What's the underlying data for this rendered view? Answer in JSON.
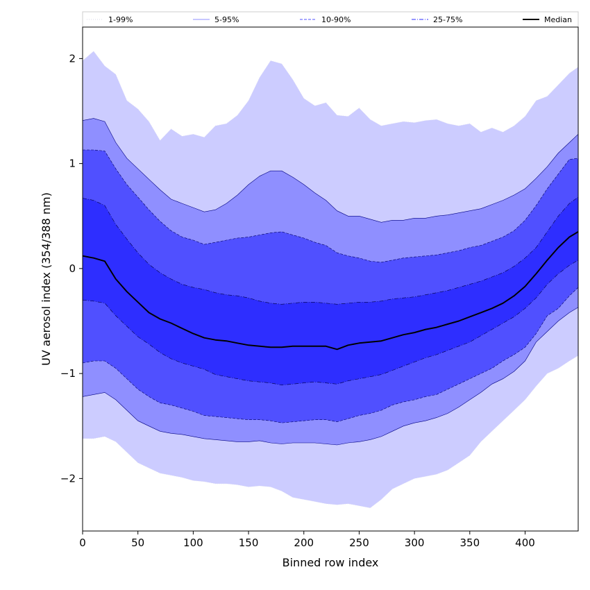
{
  "chart_data": {
    "type": "area",
    "xlabel": "Binned row index",
    "ylabel": "UV aerosol index (354/388 nm)",
    "xlim": [
      0,
      448
    ],
    "ylim": [
      -2.5,
      2.3
    ],
    "xticks": [
      0,
      50,
      100,
      150,
      200,
      250,
      300,
      350,
      400
    ],
    "xtick_labels": [
      "0",
      "50",
      "100",
      "150",
      "200",
      "250",
      "300",
      "350",
      "400"
    ],
    "yticks": [
      -2,
      -1,
      0,
      1,
      2
    ],
    "ytick_labels": [
      "−2",
      "−1",
      "0",
      "1",
      "2"
    ],
    "legend_position": "top, above plot, single row",
    "x": [
      0,
      10,
      20,
      30,
      40,
      50,
      60,
      70,
      80,
      90,
      100,
      110,
      120,
      130,
      140,
      150,
      160,
      170,
      180,
      190,
      200,
      210,
      220,
      230,
      240,
      250,
      260,
      270,
      280,
      290,
      300,
      310,
      320,
      330,
      340,
      350,
      360,
      370,
      380,
      390,
      400,
      410,
      420,
      430,
      440,
      448
    ],
    "bands": [
      {
        "name": "1-99%",
        "color": "#ccccff",
        "line_color": "#e0e0ee",
        "line_style": "dotted",
        "upper": [
          1.98,
          2.07,
          1.93,
          1.85,
          1.6,
          1.52,
          1.4,
          1.22,
          1.33,
          1.26,
          1.28,
          1.25,
          1.36,
          1.38,
          1.46,
          1.6,
          1.82,
          1.98,
          1.95,
          1.8,
          1.62,
          1.55,
          1.58,
          1.46,
          1.45,
          1.53,
          1.42,
          1.36,
          1.38,
          1.4,
          1.39,
          1.41,
          1.42,
          1.38,
          1.36,
          1.38,
          1.3,
          1.34,
          1.3,
          1.36,
          1.45,
          1.6,
          1.64,
          1.75,
          1.86,
          1.92
        ],
        "lower": [
          -1.62,
          -1.62,
          -1.6,
          -1.65,
          -1.75,
          -1.85,
          -1.9,
          -1.95,
          -1.97,
          -1.99,
          -2.02,
          -2.03,
          -2.05,
          -2.05,
          -2.06,
          -2.08,
          -2.07,
          -2.08,
          -2.12,
          -2.18,
          -2.2,
          -2.22,
          -2.24,
          -2.25,
          -2.24,
          -2.26,
          -2.28,
          -2.2,
          -2.1,
          -2.05,
          -2.0,
          -1.98,
          -1.96,
          -1.92,
          -1.85,
          -1.78,
          -1.65,
          -1.55,
          -1.45,
          -1.35,
          -1.25,
          -1.12,
          -1.0,
          -0.95,
          -0.88,
          -0.83
        ]
      },
      {
        "name": "5-95%",
        "color": "#8f8fff",
        "line_color": "#000080",
        "line_style": "solid",
        "upper": [
          1.41,
          1.43,
          1.4,
          1.2,
          1.05,
          0.95,
          0.85,
          0.75,
          0.66,
          0.62,
          0.58,
          0.54,
          0.56,
          0.62,
          0.7,
          0.8,
          0.88,
          0.93,
          0.93,
          0.87,
          0.8,
          0.72,
          0.65,
          0.55,
          0.5,
          0.5,
          0.47,
          0.44,
          0.46,
          0.46,
          0.48,
          0.48,
          0.5,
          0.51,
          0.53,
          0.55,
          0.57,
          0.61,
          0.65,
          0.7,
          0.76,
          0.86,
          0.97,
          1.1,
          1.2,
          1.28
        ],
        "lower": [
          -1.22,
          -1.2,
          -1.18,
          -1.25,
          -1.35,
          -1.45,
          -1.5,
          -1.55,
          -1.57,
          -1.58,
          -1.6,
          -1.62,
          -1.63,
          -1.64,
          -1.65,
          -1.65,
          -1.64,
          -1.66,
          -1.67,
          -1.66,
          -1.66,
          -1.66,
          -1.67,
          -1.68,
          -1.66,
          -1.65,
          -1.63,
          -1.6,
          -1.55,
          -1.5,
          -1.47,
          -1.45,
          -1.42,
          -1.38,
          -1.32,
          -1.25,
          -1.18,
          -1.1,
          -1.05,
          -0.98,
          -0.88,
          -0.7,
          -0.6,
          -0.5,
          -0.42,
          -0.37
        ]
      },
      {
        "name": "10-90%",
        "color": "#5050ff",
        "line_color": "#000060",
        "line_style": "dashed",
        "upper": [
          1.13,
          1.13,
          1.12,
          0.95,
          0.8,
          0.68,
          0.56,
          0.45,
          0.36,
          0.3,
          0.27,
          0.23,
          0.25,
          0.27,
          0.29,
          0.3,
          0.32,
          0.34,
          0.35,
          0.32,
          0.29,
          0.25,
          0.22,
          0.15,
          0.12,
          0.1,
          0.07,
          0.06,
          0.08,
          0.1,
          0.11,
          0.12,
          0.13,
          0.15,
          0.17,
          0.2,
          0.22,
          0.26,
          0.3,
          0.36,
          0.46,
          0.6,
          0.76,
          0.9,
          1.04,
          1.05
        ],
        "lower": [
          -0.9,
          -0.88,
          -0.88,
          -0.95,
          -1.05,
          -1.15,
          -1.22,
          -1.28,
          -1.3,
          -1.33,
          -1.36,
          -1.4,
          -1.41,
          -1.42,
          -1.43,
          -1.44,
          -1.44,
          -1.45,
          -1.47,
          -1.46,
          -1.45,
          -1.44,
          -1.44,
          -1.46,
          -1.43,
          -1.4,
          -1.38,
          -1.35,
          -1.3,
          -1.27,
          -1.25,
          -1.22,
          -1.2,
          -1.15,
          -1.1,
          -1.05,
          -1.0,
          -0.95,
          -0.88,
          -0.82,
          -0.75,
          -0.62,
          -0.45,
          -0.38,
          -0.26,
          -0.18
        ]
      },
      {
        "name": "25-75%",
        "color": "#2e2eff",
        "line_color": "#000040",
        "line_style": "dashdot",
        "upper": [
          0.67,
          0.65,
          0.6,
          0.42,
          0.28,
          0.15,
          0.04,
          -0.04,
          -0.1,
          -0.15,
          -0.18,
          -0.2,
          -0.23,
          -0.25,
          -0.26,
          -0.28,
          -0.31,
          -0.33,
          -0.34,
          -0.33,
          -0.32,
          -0.32,
          -0.33,
          -0.34,
          -0.33,
          -0.32,
          -0.32,
          -0.31,
          -0.29,
          -0.28,
          -0.27,
          -0.25,
          -0.23,
          -0.21,
          -0.18,
          -0.15,
          -0.12,
          -0.08,
          -0.04,
          0.02,
          0.1,
          0.2,
          0.35,
          0.5,
          0.62,
          0.68
        ],
        "lower": [
          -0.3,
          -0.31,
          -0.33,
          -0.45,
          -0.55,
          -0.65,
          -0.72,
          -0.8,
          -0.86,
          -0.9,
          -0.93,
          -0.96,
          -1.01,
          -1.03,
          -1.05,
          -1.07,
          -1.08,
          -1.09,
          -1.11,
          -1.1,
          -1.09,
          -1.08,
          -1.09,
          -1.1,
          -1.07,
          -1.05,
          -1.03,
          -1.01,
          -0.97,
          -0.93,
          -0.89,
          -0.85,
          -0.82,
          -0.78,
          -0.74,
          -0.7,
          -0.64,
          -0.58,
          -0.52,
          -0.46,
          -0.38,
          -0.28,
          -0.15,
          -0.05,
          0.03,
          0.08
        ]
      }
    ],
    "series": [
      {
        "name": "Median",
        "color": "#000000",
        "values": [
          0.12,
          0.1,
          0.07,
          -0.1,
          -0.22,
          -0.32,
          -0.42,
          -0.48,
          -0.52,
          -0.57,
          -0.62,
          -0.66,
          -0.68,
          -0.69,
          -0.71,
          -0.73,
          -0.74,
          -0.75,
          -0.75,
          -0.74,
          -0.74,
          -0.74,
          -0.74,
          -0.77,
          -0.73,
          -0.71,
          -0.7,
          -0.69,
          -0.66,
          -0.63,
          -0.61,
          -0.58,
          -0.56,
          -0.53,
          -0.5,
          -0.46,
          -0.42,
          -0.38,
          -0.33,
          -0.26,
          -0.17,
          -0.05,
          0.08,
          0.2,
          0.3,
          0.35
        ]
      }
    ],
    "legend": [
      "1-99%",
      "5-95%",
      "10-90%",
      "25-75%",
      "Median"
    ]
  }
}
